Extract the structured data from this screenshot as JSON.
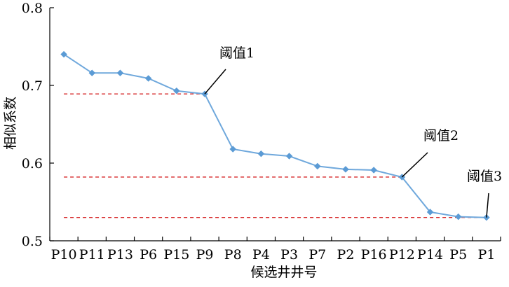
{
  "chart_data": {
    "type": "line",
    "xlabel": "候选井井号",
    "ylabel": "相似系数",
    "ylim": [
      0.5,
      0.8
    ],
    "yticks": [
      "0.5",
      "0.6",
      "0.7",
      "0.8"
    ],
    "categories": [
      "P10",
      "P11",
      "P13",
      "P6",
      "P15",
      "P9",
      "P8",
      "P4",
      "P3",
      "P7",
      "P2",
      "P16",
      "P12",
      "P14",
      "P5",
      "P1"
    ],
    "series": [
      {
        "values": [
          0.74,
          0.716,
          0.716,
          0.709,
          0.693,
          0.689,
          0.618,
          0.612,
          0.609,
          0.596,
          0.592,
          0.591,
          0.582,
          0.537,
          0.531,
          0.53
        ]
      }
    ],
    "thresholds": [
      {
        "label": "阈值1",
        "value": 0.689,
        "end_category": "P9"
      },
      {
        "label": "阈值2",
        "value": 0.582,
        "end_category": "P12"
      },
      {
        "label": "阈值3",
        "value": 0.53,
        "end_category": "P1"
      }
    ],
    "colors": {
      "series": "#6fa8dc",
      "marker": "#5b9bd5",
      "threshold": "#d62728",
      "axis": "#000000"
    },
    "grid": false,
    "legend": "none"
  }
}
